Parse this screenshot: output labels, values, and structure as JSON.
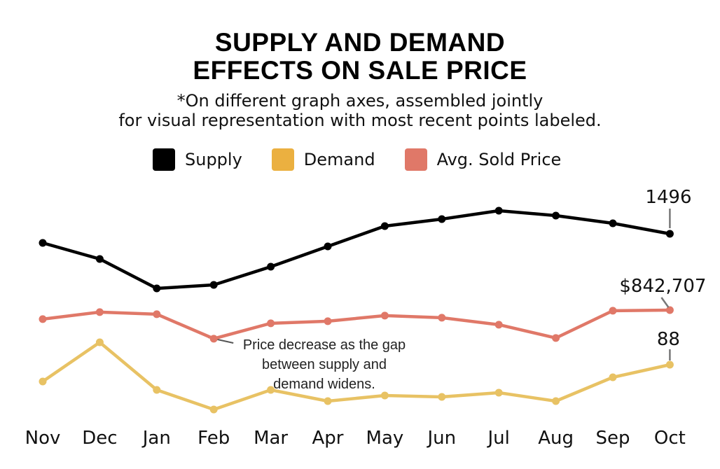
{
  "chart_data": {
    "type": "line",
    "title": "SUPPLY AND DEMAND EFFECTS ON SALE PRICE",
    "title_lines": [
      "SUPPLY AND DEMAND",
      "EFFECTS ON SALE PRICE"
    ],
    "subtitle_lines": [
      "*On different graph axes, assembled jointly",
      "for visual representation with most recent points labeled."
    ],
    "xlabel": "",
    "ylabel": "",
    "grid": false,
    "legend_placement": "top",
    "categories": [
      "Nov",
      "Dec",
      "Jan",
      "Feb",
      "Mar",
      "Apr",
      "May",
      "Jun",
      "Jul",
      "Aug",
      "Sep",
      "Oct"
    ],
    "series": [
      {
        "name": "Supply",
        "color": "#000000",
        "values": [
          1457,
          1388,
          1262,
          1277,
          1355,
          1442,
          1529,
          1559,
          1595,
          1574,
          1541,
          1496
        ],
        "last_label": "1496"
      },
      {
        "name": "Demand",
        "color": "#EBB040",
        "line_color": "#E8C264",
        "values": [
          76,
          104,
          70,
          56,
          70,
          62,
          66,
          65,
          68,
          62,
          79,
          88
        ],
        "last_label": "88"
      },
      {
        "name": "Avg. Sold Price",
        "color": "#E07868",
        "values": [
          817000,
          837000,
          831000,
          761000,
          805000,
          811000,
          827000,
          821000,
          801000,
          763000,
          841000,
          842707
        ],
        "last_label": "$842,707"
      }
    ],
    "annotation": {
      "target": "Feb",
      "series": "Avg. Sold Price",
      "lines": [
        "Price decrease as  the gap",
        "between supply and",
        "demand widens."
      ]
    }
  }
}
